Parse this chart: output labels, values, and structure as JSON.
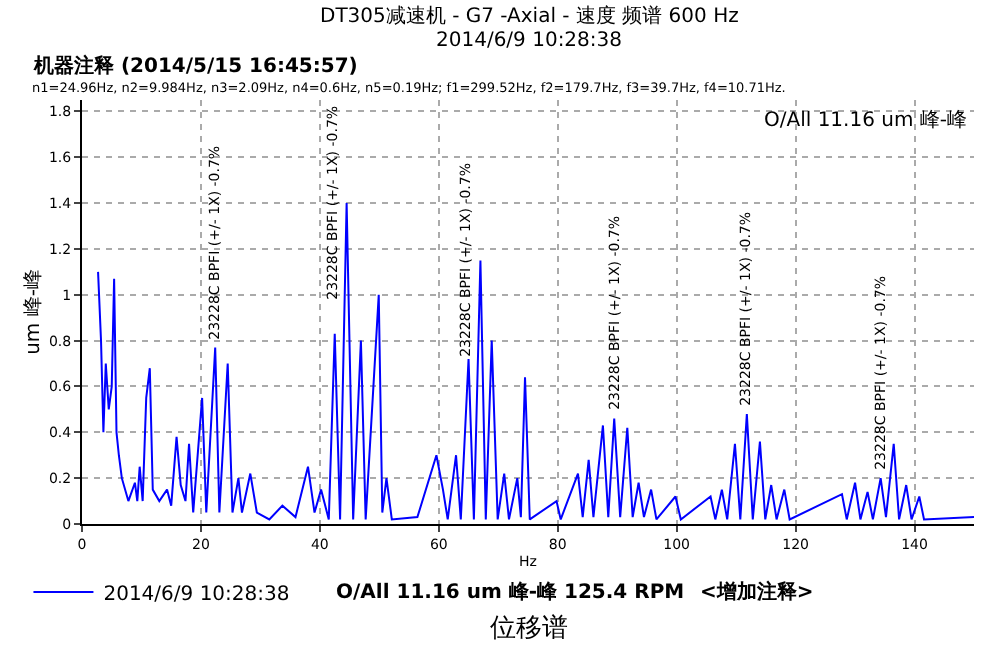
{
  "chart_data": {
    "type": "line",
    "title": "DT305减速机 - G7 -Axial - 速度 频谱 600 Hz",
    "subtitle": "2014/6/9 10:28:38",
    "xlabel": "Hz",
    "ylabel": "um 峰-峰",
    "x": [
      2.7,
      3.2,
      3.6,
      4.0,
      4.5,
      5.0,
      5.4,
      5.8,
      6.2,
      6.7,
      7.8,
      8.9,
      9.3,
      9.7,
      10.2,
      10.8,
      11.4,
      11.9,
      13,
      14.3,
      15.0,
      15.9,
      16.6,
      17.4,
      18,
      18.7,
      20.2,
      20.9,
      22.4,
      23.1,
      24.5,
      25.3,
      26.3,
      26.9,
      28.3,
      29.4,
      31.5,
      33.7,
      35.9,
      38,
      39.1,
      40.2,
      41.5,
      42.5,
      43.4,
      44.5,
      45.6,
      46.9,
      47.7,
      49.9,
      50.5,
      51.2,
      52.1,
      56.4,
      59.6,
      60.7,
      61.5,
      62.9,
      63.7,
      65,
      65.9,
      67,
      67.9,
      68.9,
      69.9,
      71,
      71.8,
      73.2,
      73.8,
      74.5,
      75.3,
      79.8,
      80.5,
      83.4,
      84.2,
      85.2,
      86,
      87.6,
      88.5,
      89.5,
      90.5,
      91.7,
      92.6,
      93.6,
      94.5,
      95.7,
      96.6,
      99.8,
      100.7,
      105.7,
      106.5,
      107.6,
      108.5,
      109.8,
      110.7,
      111.8,
      112.8,
      114,
      114.9,
      115.9,
      116.8,
      118.1,
      119,
      127.8,
      128.6,
      130,
      130.9,
      132.1,
      133,
      134.3,
      135.2,
      136.5,
      137.4,
      138.6,
      139.5,
      140.8,
      141.6,
      150
    ],
    "series": [
      {
        "name": "2014/6/9 10:28:38",
        "color": "#0000ff",
        "values": [
          1.1,
          0.8,
          0.4,
          0.7,
          0.5,
          0.6,
          1.07,
          0.4,
          0.3,
          0.2,
          0.1,
          0.18,
          0.1,
          0.25,
          0.1,
          0.55,
          0.68,
          0.15,
          0.1,
          0.15,
          0.08,
          0.38,
          0.17,
          0.1,
          0.35,
          0.05,
          0.55,
          0.05,
          0.77,
          0.05,
          0.7,
          0.05,
          0.2,
          0.05,
          0.22,
          0.05,
          0.02,
          0.08,
          0.03,
          0.25,
          0.05,
          0.15,
          0.02,
          0.83,
          0.02,
          1.4,
          0.02,
          0.8,
          0.02,
          1.0,
          0.05,
          0.2,
          0.02,
          0.03,
          0.3,
          0.15,
          0.02,
          0.3,
          0.02,
          0.72,
          0.02,
          1.15,
          0.02,
          0.8,
          0.02,
          0.22,
          0.02,
          0.2,
          0.03,
          0.64,
          0.02,
          0.1,
          0.02,
          0.22,
          0.03,
          0.28,
          0.03,
          0.43,
          0.03,
          0.46,
          0.03,
          0.42,
          0.03,
          0.18,
          0.03,
          0.15,
          0.02,
          0.12,
          0.02,
          0.12,
          0.02,
          0.15,
          0.02,
          0.35,
          0.02,
          0.48,
          0.02,
          0.36,
          0.02,
          0.17,
          0.02,
          0.15,
          0.02,
          0.13,
          0.02,
          0.18,
          0.02,
          0.14,
          0.02,
          0.2,
          0.03,
          0.35,
          0.02,
          0.17,
          0.02,
          0.12,
          0.02,
          0.03
        ]
      }
    ],
    "xlim": [
      0,
      150
    ],
    "xticks": [
      0,
      20,
      40,
      60,
      80,
      100,
      120,
      140
    ],
    "ylim": [
      0,
      1.85
    ],
    "yticks": [
      0,
      0.2,
      0.4,
      0.6,
      0.8,
      1,
      1.2,
      1.4,
      1.6,
      1.8
    ],
    "grid": true,
    "legend": "bottom",
    "marker": "none",
    "line_style": "solid",
    "annotations": [
      "机器注释 (2014/5/15 16:45:57)",
      "n1=24.96Hz, n2=9.984Hz, n3=2.09Hz, n4=0.6Hz, n5=0.19Hz; f1=299.52Hz, f2=179.7Hz, f3=39.7Hz, f4=10.71Hz.",
      "O/All 11.16 um 峰-峰",
      "O/All 11.16 um 峰-峰",
      "125.4 RPM",
      "<增加注释>",
      "位移谱",
      {
        "text": "23228C BPFI (+/- 1X) -0.7%",
        "x": 22.4,
        "y": 0.77
      },
      {
        "text": "23228C BPFI (+/- 1X) -0.7%",
        "x": 44.5,
        "y": 1.4
      },
      {
        "text": "23228C BPFI (+/- 1X) -0.7%",
        "x": 67,
        "y": 1.15
      },
      {
        "text": "23228C BPFI (+/- 1X) -0.7%",
        "x": 89.5,
        "y": 0.46
      },
      {
        "text": "23228C BPFI (+/- 1X) -0.7%",
        "x": 111.8,
        "y": 0.48
      },
      {
        "text": "23228C BPFI (+/- 1X) -0.7%",
        "x": 134.3,
        "y": 0.2
      }
    ]
  }
}
